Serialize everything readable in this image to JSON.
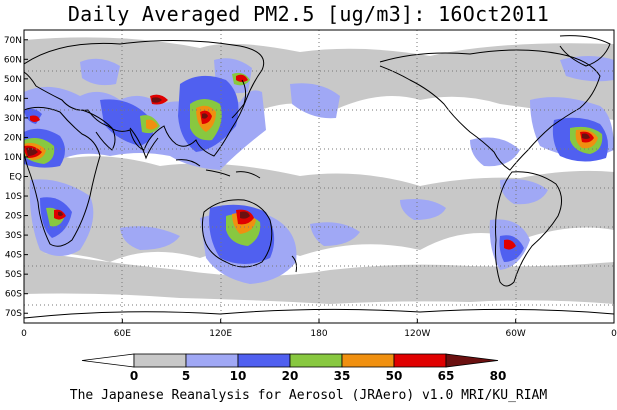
{
  "title": "Daily Averaged PM2.5 [ug/m3]: 16Oct2011",
  "footer": "The Japanese Reanalysis for Aerosol (JRAero) v1.0 MRI/KU_RIAM",
  "map": {
    "lon_range": [
      0,
      360
    ],
    "lat_range": [
      -75,
      75
    ],
    "y_ticks": [
      "70N",
      "60N",
      "50N",
      "40N",
      "30N",
      "20N",
      "10N",
      "EQ",
      "10S",
      "20S",
      "30S",
      "40S",
      "50S",
      "60S",
      "70S"
    ],
    "y_tick_values": [
      70,
      60,
      50,
      40,
      30,
      20,
      10,
      0,
      -10,
      -20,
      -30,
      -40,
      -50,
      -60,
      -70
    ],
    "x_ticks": [
      "0",
      "60E",
      "120E",
      "180",
      "120W",
      "60W",
      "0"
    ],
    "x_tick_values": [
      0,
      60,
      120,
      180,
      240,
      300,
      360
    ],
    "grid": "dotted"
  },
  "colorbar": {
    "labels": [
      "0",
      "5",
      "10",
      "20",
      "35",
      "50",
      "65",
      "80"
    ],
    "levels": [
      0,
      5,
      10,
      20,
      35,
      50,
      65,
      80
    ],
    "colors": [
      "#ffffff",
      "#c8c8c8",
      "#a0a8f5",
      "#5060f0",
      "#88c840",
      "#f09010",
      "#e00000",
      "#6b1010"
    ]
  }
}
